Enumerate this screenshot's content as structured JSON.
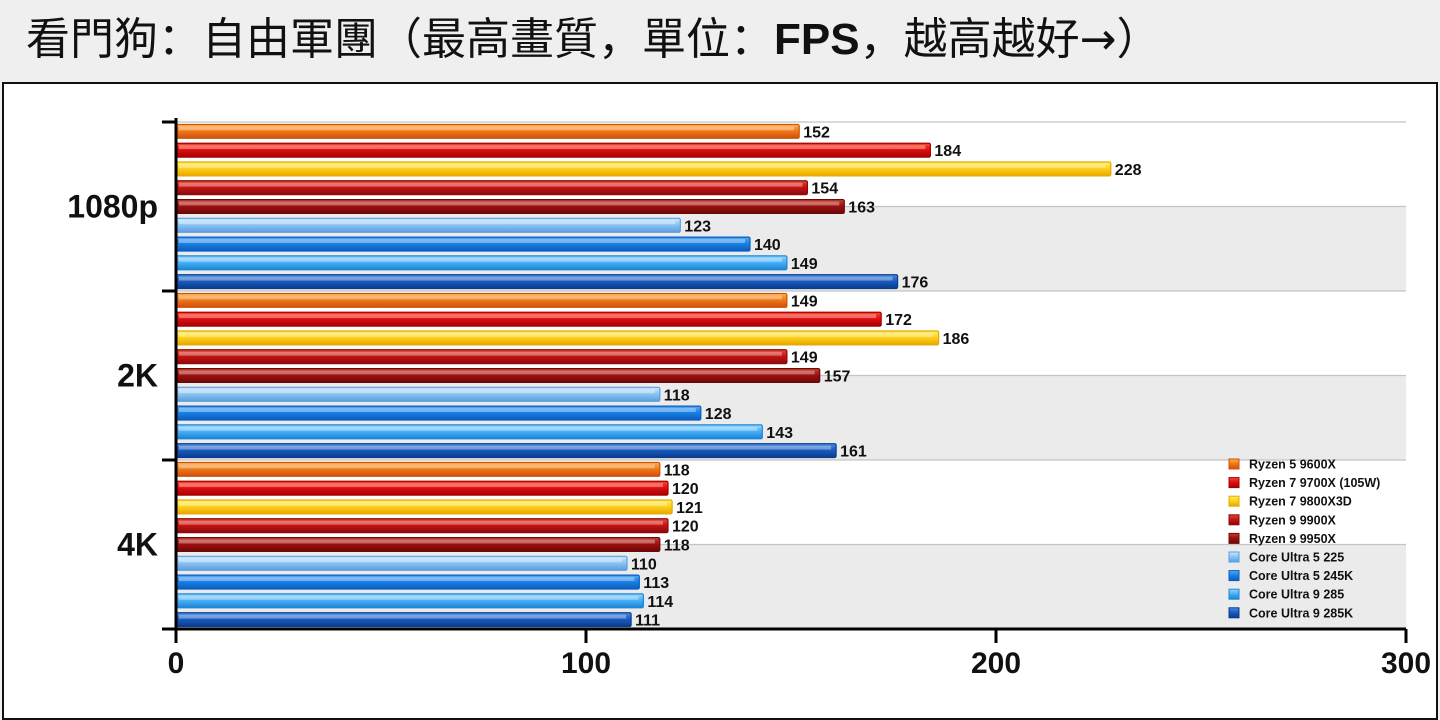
{
  "title": {
    "prefix": "看門狗：自由軍團（最高畫質，單位：",
    "unit": "FPS",
    "suffix": "，越高越好→）"
  },
  "chart_data": {
    "type": "bar",
    "orientation": "horizontal",
    "categories": [
      "1080p",
      "2K",
      "4K"
    ],
    "xlim": [
      0,
      300
    ],
    "xticks": [
      0,
      100,
      200,
      300
    ],
    "grid": true,
    "legend_position": "bottom-right",
    "series": [
      {
        "name": "Ryzen 5 9600X",
        "values": [
          152,
          149,
          118
        ],
        "color": "#f07a1a",
        "light": "#fbb24a",
        "dark": "#d0500a"
      },
      {
        "name": "Ryzen 7 9700X (105W)",
        "values": [
          184,
          172,
          120
        ],
        "color": "#e01010",
        "light": "#ff4a2a",
        "dark": "#a80000"
      },
      {
        "name": "Ryzen 7 9800X3D",
        "values": [
          228,
          186,
          121
        ],
        "color": "#ffd21a",
        "light": "#fff06a",
        "dark": "#e8a800"
      },
      {
        "name": "Ryzen 9 9900X",
        "values": [
          154,
          149,
          120
        ],
        "color": "#c81414",
        "light": "#e24a30",
        "dark": "#8c0a0a"
      },
      {
        "name": "Ryzen 9 9950X",
        "values": [
          163,
          157,
          118
        ],
        "color": "#a01010",
        "light": "#c44030",
        "dark": "#6c0808"
      },
      {
        "name": "Core Ultra 5 225",
        "values": [
          123,
          118,
          110
        ],
        "color": "#8ec6f2",
        "light": "#cde8ff",
        "dark": "#5a9ee0"
      },
      {
        "name": "Core Ultra 5 245K",
        "values": [
          140,
          128,
          113
        ],
        "color": "#1a82e6",
        "light": "#58aaf4",
        "dark": "#0a5cc0"
      },
      {
        "name": "Core Ultra 9 285",
        "values": [
          149,
          143,
          114
        ],
        "color": "#4ab0f6",
        "light": "#9ad6ff",
        "dark": "#1a86d8"
      },
      {
        "name": "Core Ultra 9 285K",
        "values": [
          176,
          161,
          111
        ],
        "color": "#1a5cc0",
        "light": "#4a8ae0",
        "dark": "#0a3c8c"
      }
    ]
  }
}
